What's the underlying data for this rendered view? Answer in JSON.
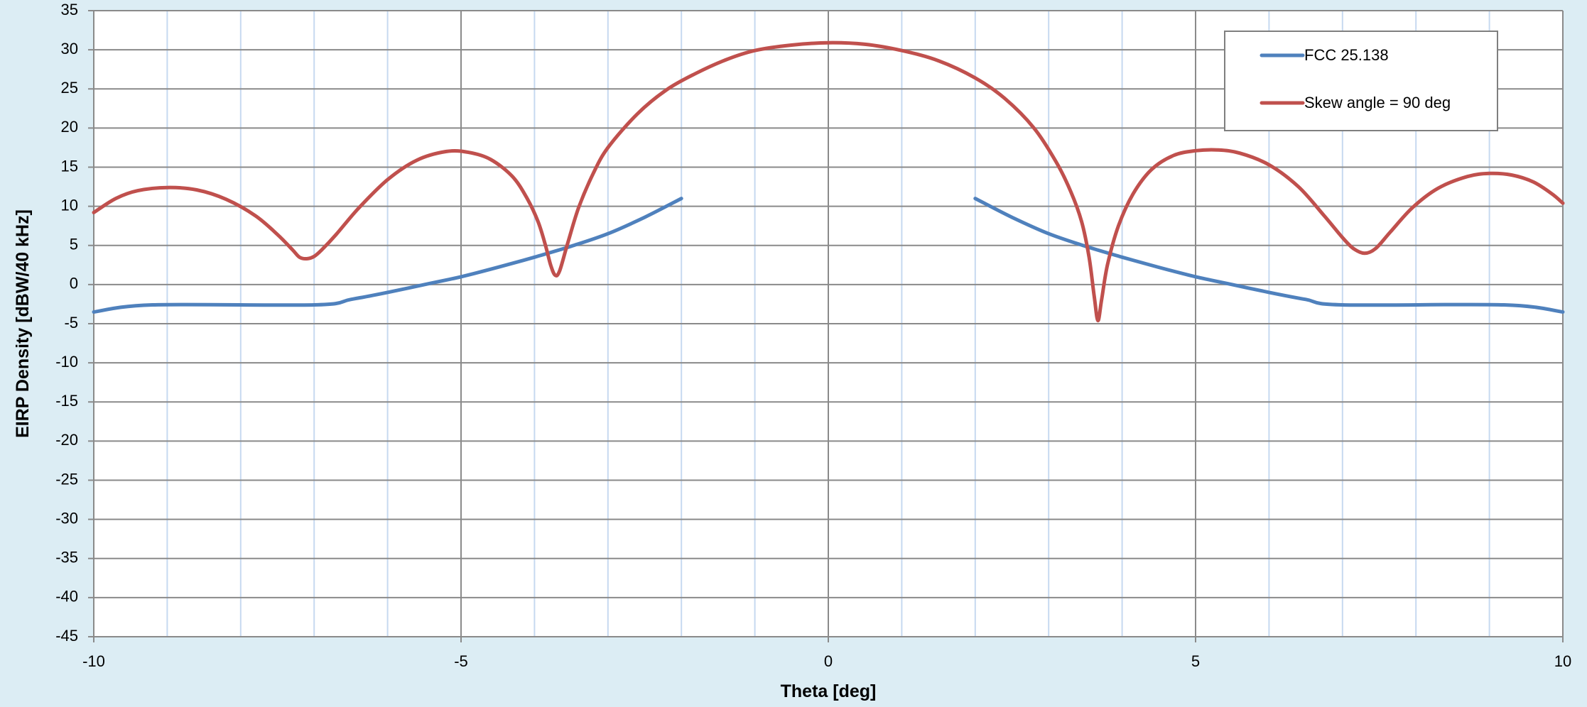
{
  "chart_data": {
    "type": "line",
    "xlabel": "Theta [deg]",
    "ylabel": "EIRP Density [dBW/40 kHz]",
    "xlim": [
      -10,
      10
    ],
    "ylim": [
      -45,
      35
    ],
    "x_major_ticks": [
      -10,
      -5,
      0,
      5,
      10
    ],
    "x_minor_gridlines": [
      -9,
      -8,
      -7,
      -6,
      -4,
      -3,
      -2,
      -1,
      1,
      2,
      3,
      4,
      6,
      7,
      8,
      9
    ],
    "y_ticks": [
      35,
      30,
      25,
      20,
      15,
      10,
      5,
      0,
      -5,
      -10,
      -15,
      -20,
      -25,
      -30,
      -35,
      -40,
      -45
    ],
    "grid": true,
    "legend_position": "top-right",
    "colors": {
      "background": "#dcedf4",
      "plot_area": "#ffffff",
      "major_grid": "#8a8a8a",
      "minor_grid": "#c6d9f0"
    },
    "series": [
      {
        "name": "FCC 25.138",
        "color": "#4f81bd",
        "segments": [
          [
            [
              -10,
              -3.5
            ],
            [
              -9.2,
              -2.6
            ],
            [
              -7,
              -2.6
            ],
            [
              -6.5,
              -1.9
            ],
            [
              -6,
              -1.0
            ],
            [
              -5.5,
              0.0
            ],
            [
              -5,
              1.0
            ],
            [
              -4.5,
              2.2
            ],
            [
              -4,
              3.5
            ],
            [
              -3.5,
              4.9
            ],
            [
              -3,
              6.5
            ],
            [
              -2.5,
              8.6
            ],
            [
              -2,
              11.0
            ]
          ],
          [
            [
              2,
              11.0
            ],
            [
              2.5,
              8.6
            ],
            [
              3,
              6.5
            ],
            [
              3.5,
              4.9
            ],
            [
              4,
              3.5
            ],
            [
              4.5,
              2.2
            ],
            [
              5,
              1.0
            ],
            [
              5.5,
              0.0
            ],
            [
              6,
              -1.0
            ],
            [
              6.5,
              -1.9
            ],
            [
              7,
              -2.6
            ],
            [
              9.2,
              -2.6
            ],
            [
              10,
              -3.5
            ]
          ]
        ]
      },
      {
        "name": "Skew angle = 90 deg",
        "color": "#c0504d",
        "segments": [
          [
            [
              -10,
              9.2
            ],
            [
              -9.7,
              11.0
            ],
            [
              -9.4,
              12.0
            ],
            [
              -9,
              12.4
            ],
            [
              -8.6,
              12.1
            ],
            [
              -8.2,
              10.9
            ],
            [
              -7.8,
              8.8
            ],
            [
              -7.5,
              6.4
            ],
            [
              -7.3,
              4.5
            ],
            [
              -7.2,
              3.5
            ],
            [
              -7.1,
              3.3
            ],
            [
              -7.0,
              3.6
            ],
            [
              -6.9,
              4.4
            ],
            [
              -6.7,
              6.4
            ],
            [
              -6.4,
              9.7
            ],
            [
              -6.0,
              13.4
            ],
            [
              -5.6,
              15.9
            ],
            [
              -5.2,
              17.0
            ],
            [
              -4.9,
              16.9
            ],
            [
              -4.6,
              16.0
            ],
            [
              -4.3,
              13.8
            ],
            [
              -4.1,
              11.0
            ],
            [
              -3.95,
              8.0
            ],
            [
              -3.85,
              5.0
            ],
            [
              -3.78,
              2.5
            ],
            [
              -3.72,
              1.2
            ],
            [
              -3.66,
              1.7
            ],
            [
              -3.55,
              5.2
            ],
            [
              -3.4,
              9.8
            ],
            [
              -3.2,
              14.2
            ],
            [
              -3.0,
              17.5
            ],
            [
              -2.6,
              21.8
            ],
            [
              -2.2,
              24.9
            ],
            [
              -1.8,
              27.0
            ],
            [
              -1.4,
              28.7
            ],
            [
              -1.0,
              29.9
            ],
            [
              -0.5,
              30.6
            ],
            [
              0,
              30.9
            ],
            [
              0.5,
              30.7
            ],
            [
              1.0,
              29.9
            ],
            [
              1.5,
              28.6
            ],
            [
              2.0,
              26.4
            ],
            [
              2.4,
              23.8
            ],
            [
              2.8,
              20.0
            ],
            [
              3.1,
              15.7
            ],
            [
              3.3,
              11.9
            ],
            [
              3.45,
              8.0
            ],
            [
              3.55,
              3.5
            ],
            [
              3.62,
              -1.5
            ],
            [
              3.67,
              -4.6
            ],
            [
              3.72,
              -2.0
            ],
            [
              3.8,
              2.5
            ],
            [
              3.95,
              7.5
            ],
            [
              4.15,
              11.6
            ],
            [
              4.4,
              14.7
            ],
            [
              4.7,
              16.5
            ],
            [
              5.0,
              17.1
            ],
            [
              5.3,
              17.2
            ],
            [
              5.6,
              16.8
            ],
            [
              6.0,
              15.3
            ],
            [
              6.4,
              12.5
            ],
            [
              6.75,
              8.8
            ],
            [
              7.0,
              6.0
            ],
            [
              7.15,
              4.6
            ],
            [
              7.3,
              4.0
            ],
            [
              7.45,
              4.6
            ],
            [
              7.65,
              6.7
            ],
            [
              7.95,
              9.8
            ],
            [
              8.3,
              12.3
            ],
            [
              8.7,
              13.8
            ],
            [
              9.0,
              14.2
            ],
            [
              9.3,
              14.0
            ],
            [
              9.6,
              13.1
            ],
            [
              9.85,
              11.6
            ],
            [
              10,
              10.4
            ]
          ]
        ]
      }
    ]
  }
}
